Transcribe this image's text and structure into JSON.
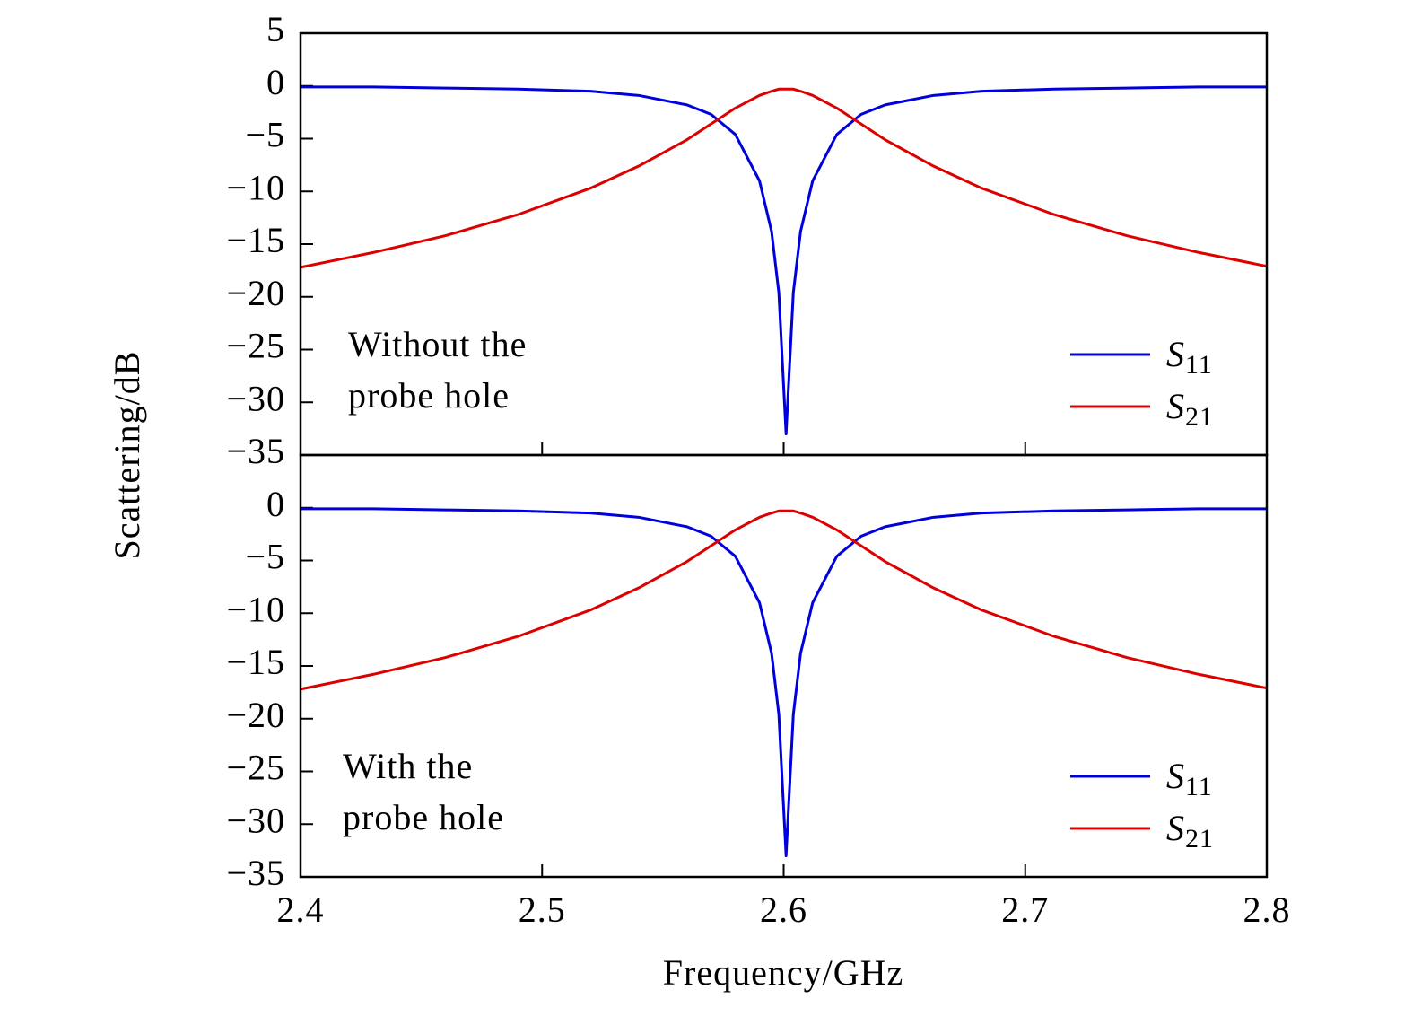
{
  "chart_data": [
    {
      "type": "line",
      "y_label": "Scattering/dB",
      "annotation": [
        "Without the",
        "probe hole"
      ],
      "x": [
        2.4,
        2.43,
        2.46,
        2.49,
        2.52,
        2.54,
        2.56,
        2.57,
        2.58,
        2.59,
        2.595,
        2.598,
        2.601,
        2.604,
        2.607,
        2.612,
        2.622,
        2.632,
        2.642,
        2.662,
        2.682,
        2.712,
        2.742,
        2.772,
        2.8
      ],
      "series": [
        {
          "name": "S11",
          "color": "#0000dd",
          "values": [
            -0.1,
            -0.1,
            -0.2,
            -0.3,
            -0.5,
            -0.9,
            -1.8,
            -2.7,
            -4.6,
            -9.0,
            -13.8,
            -19.6,
            -33.0,
            -19.6,
            -13.8,
            -9.0,
            -4.6,
            -2.7,
            -1.8,
            -0.9,
            -0.5,
            -0.3,
            -0.2,
            -0.1,
            -0.1
          ]
        },
        {
          "name": "S21",
          "color": "#dd0000",
          "values": [
            -17.2,
            -15.8,
            -14.2,
            -12.2,
            -9.7,
            -7.6,
            -5.1,
            -3.6,
            -2.1,
            -0.9,
            -0.5,
            -0.3,
            -0.3,
            -0.3,
            -0.5,
            -0.9,
            -2.1,
            -3.6,
            -5.1,
            -7.6,
            -9.7,
            -12.2,
            -14.2,
            -15.8,
            -17.1
          ]
        }
      ],
      "xlim": [
        2.4,
        2.8
      ],
      "ylim": [
        -35,
        5
      ],
      "yticks": [
        5,
        0,
        {
          "value": -5,
          "label": "−5"
        },
        {
          "value": -10,
          "label": "−10"
        },
        {
          "value": -15,
          "label": "−15"
        },
        {
          "value": -20,
          "label": "−20"
        },
        {
          "value": -25,
          "label": "−25"
        },
        {
          "value": -30,
          "label": "−30"
        },
        {
          "value": -35,
          "label": "−35"
        }
      ],
      "legend": "lower right"
    },
    {
      "type": "line",
      "x_label": "Frequency/GHz",
      "annotation": [
        "With the",
        "probe hole"
      ],
      "x": [
        2.4,
        2.43,
        2.46,
        2.49,
        2.52,
        2.54,
        2.56,
        2.57,
        2.58,
        2.59,
        2.595,
        2.598,
        2.601,
        2.604,
        2.607,
        2.612,
        2.622,
        2.632,
        2.642,
        2.662,
        2.682,
        2.712,
        2.742,
        2.772,
        2.8
      ],
      "series": [
        {
          "name": "S11",
          "color": "#0000dd",
          "values": [
            -0.1,
            -0.1,
            -0.2,
            -0.3,
            -0.5,
            -0.9,
            -1.8,
            -2.7,
            -4.6,
            -9.0,
            -13.8,
            -19.6,
            -33.0,
            -19.6,
            -13.8,
            -9.0,
            -4.6,
            -2.7,
            -1.8,
            -0.9,
            -0.5,
            -0.3,
            -0.2,
            -0.1,
            -0.1
          ]
        },
        {
          "name": "S21",
          "color": "#dd0000",
          "values": [
            -17.2,
            -15.8,
            -14.2,
            -12.2,
            -9.7,
            -7.6,
            -5.1,
            -3.6,
            -2.1,
            -0.9,
            -0.5,
            -0.3,
            -0.3,
            -0.3,
            -0.5,
            -0.9,
            -2.1,
            -3.6,
            -5.1,
            -7.6,
            -9.7,
            -12.2,
            -14.2,
            -15.8,
            -17.1
          ]
        }
      ],
      "xlim": [
        2.4,
        2.8
      ],
      "ylim": [
        -35,
        5
      ],
      "xticks": [
        2.4,
        2.5,
        2.6,
        2.7,
        2.8
      ],
      "yticks": [
        0,
        {
          "value": -5,
          "label": "−5"
        },
        {
          "value": -10,
          "label": "−10"
        },
        {
          "value": -15,
          "label": "−15"
        },
        {
          "value": -20,
          "label": "−20"
        },
        {
          "value": -25,
          "label": "−25"
        },
        {
          "value": -30,
          "label": "−30"
        },
        {
          "value": -35,
          "label": "−35"
        }
      ],
      "legend": "lower right"
    }
  ]
}
